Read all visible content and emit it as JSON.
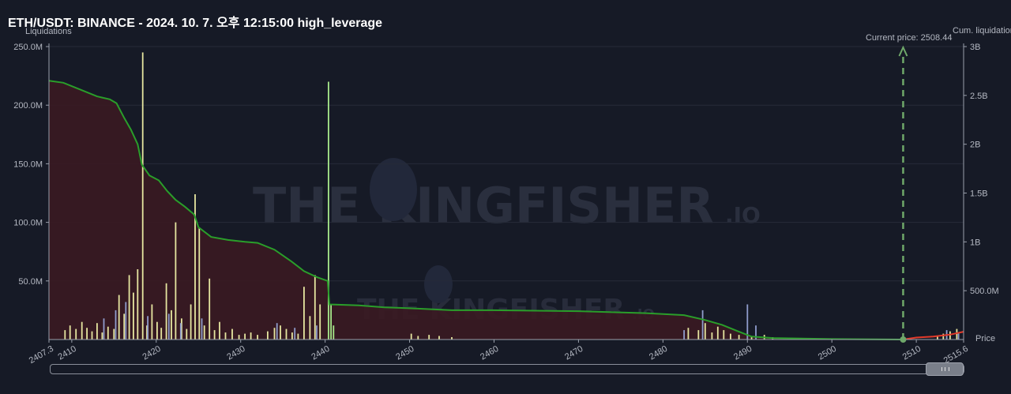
{
  "title": "ETH/USDT: BINANCE - 2024. 10. 7. 오후 12:15:00 high_leverage",
  "chart_data": {
    "type": "bar",
    "left_axis_label": "Liquidations",
    "right_axis_label": "Cum. liquidations",
    "right_axis_sublabel": "Price",
    "left_ticks": [
      "50.0M",
      "100.0M",
      "150.0M",
      "200.0M",
      "250.0M"
    ],
    "left_tick_values": [
      50,
      100,
      150,
      200,
      250
    ],
    "left_ylim": [
      0,
      250
    ],
    "right_ticks": [
      "500.0M",
      "1B",
      "1.5B",
      "2B",
      "2.5B",
      "3B"
    ],
    "right_tick_values": [
      0.5,
      1,
      1.5,
      2,
      2.5,
      3
    ],
    "right_ylim": [
      0,
      3
    ],
    "x_ticks": [
      "2407.3",
      "2410",
      "2420",
      "2430",
      "2440",
      "2450",
      "2460",
      "2470",
      "2480",
      "2490",
      "2500",
      "2510",
      "2515.6"
    ],
    "x_tick_values": [
      2407.3,
      2410,
      2420,
      2430,
      2440,
      2450,
      2460,
      2470,
      2480,
      2490,
      2500,
      2510,
      2515.6
    ],
    "xlim": [
      2407.3,
      2515.6
    ],
    "current_price": 2508.44,
    "current_price_label": "Current price: 2508.44",
    "watermark_large": "THE KINGFISHER",
    "watermark_suffix": ".IO",
    "watermark_small": "THE KINGFISHER",
    "watermark_small_suffix": ".IO",
    "bars_yellow": [
      [
        2409.2,
        8
      ],
      [
        2409.8,
        12
      ],
      [
        2410.5,
        9
      ],
      [
        2411.2,
        15
      ],
      [
        2411.8,
        10
      ],
      [
        2412.4,
        7
      ],
      [
        2413.0,
        14
      ],
      [
        2413.6,
        6
      ],
      [
        2414.3,
        11
      ],
      [
        2415.0,
        9
      ],
      [
        2415.6,
        38
      ],
      [
        2416.2,
        22
      ],
      [
        2416.8,
        55
      ],
      [
        2417.3,
        40
      ],
      [
        2417.8,
        60
      ],
      [
        2418.4,
        245
      ],
      [
        2418.9,
        12
      ],
      [
        2419.5,
        30
      ],
      [
        2420.1,
        15
      ],
      [
        2420.6,
        10
      ],
      [
        2421.2,
        48
      ],
      [
        2421.8,
        25
      ],
      [
        2422.3,
        100
      ],
      [
        2423.0,
        18
      ],
      [
        2423.6,
        9
      ],
      [
        2424.1,
        30
      ],
      [
        2424.6,
        124
      ],
      [
        2425.1,
        95
      ],
      [
        2425.7,
        12
      ],
      [
        2426.3,
        52
      ],
      [
        2426.9,
        8
      ],
      [
        2427.5,
        15
      ],
      [
        2428.2,
        6
      ],
      [
        2429.0,
        9
      ],
      [
        2429.8,
        4
      ],
      [
        2430.5,
        5
      ],
      [
        2431.2,
        6
      ],
      [
        2432.0,
        4
      ],
      [
        2433.2,
        7
      ],
      [
        2434.0,
        10
      ],
      [
        2434.7,
        12
      ],
      [
        2435.4,
        9
      ],
      [
        2436.1,
        6
      ],
      [
        2436.8,
        5
      ],
      [
        2437.5,
        45
      ],
      [
        2438.2,
        20
      ],
      [
        2438.8,
        55
      ],
      [
        2439.4,
        30
      ],
      [
        2450.2,
        5
      ],
      [
        2451.0,
        3
      ],
      [
        2452.3,
        4
      ],
      [
        2453.5,
        3
      ],
      [
        2455.0,
        2
      ],
      [
        2483.0,
        10
      ],
      [
        2484.2,
        8
      ],
      [
        2485.0,
        14
      ],
      [
        2485.8,
        6
      ],
      [
        2486.5,
        11
      ],
      [
        2487.2,
        8
      ],
      [
        2488.0,
        5
      ],
      [
        2489.0,
        4
      ],
      [
        2490.5,
        3
      ],
      [
        2492.0,
        4
      ],
      [
        2493.0,
        2
      ],
      [
        2512.5,
        3
      ],
      [
        2513.2,
        5
      ],
      [
        2514.0,
        7
      ],
      [
        2514.8,
        9
      ]
    ],
    "bars_blue": [
      [
        2413.8,
        18
      ],
      [
        2415.2,
        25
      ],
      [
        2416.4,
        32
      ],
      [
        2419.0,
        20
      ],
      [
        2421.5,
        22
      ],
      [
        2422.9,
        14
      ],
      [
        2425.4,
        18
      ],
      [
        2434.3,
        14
      ],
      [
        2436.4,
        10
      ],
      [
        2439.0,
        12
      ],
      [
        2482.5,
        8
      ],
      [
        2484.7,
        25
      ],
      [
        2490.0,
        30
      ],
      [
        2491.0,
        12
      ],
      [
        2513.6,
        8
      ],
      [
        2515.0,
        6
      ]
    ],
    "bars_green": [
      [
        2440.4,
        220
      ],
      [
        2440.7,
        30
      ],
      [
        2441.0,
        12
      ]
    ],
    "cum_curve_left": [
      [
        2407.3,
        2.65
      ],
      [
        2409.0,
        2.63
      ],
      [
        2411.0,
        2.56
      ],
      [
        2413.0,
        2.49
      ],
      [
        2414.5,
        2.46
      ],
      [
        2415.3,
        2.42
      ],
      [
        2416.2,
        2.27
      ],
      [
        2417.0,
        2.15
      ],
      [
        2417.8,
        2.0
      ],
      [
        2418.3,
        1.79
      ],
      [
        2419.2,
        1.68
      ],
      [
        2420.3,
        1.63
      ],
      [
        2421.3,
        1.52
      ],
      [
        2422.3,
        1.43
      ],
      [
        2423.4,
        1.36
      ],
      [
        2424.5,
        1.28
      ],
      [
        2425.0,
        1.15
      ],
      [
        2426.5,
        1.05
      ],
      [
        2428.5,
        1.02
      ],
      [
        2430.5,
        1.0
      ],
      [
        2432.0,
        0.99
      ],
      [
        2434.0,
        0.92
      ],
      [
        2436.0,
        0.8
      ],
      [
        2437.5,
        0.7
      ],
      [
        2439.0,
        0.64
      ],
      [
        2440.3,
        0.6
      ],
      [
        2440.5,
        0.36
      ],
      [
        2444.0,
        0.35
      ],
      [
        2447.0,
        0.33
      ],
      [
        2450.0,
        0.32
      ],
      [
        2455.0,
        0.3
      ],
      [
        2460.0,
        0.3
      ],
      [
        2470.0,
        0.29
      ],
      [
        2478.0,
        0.27
      ],
      [
        2482.5,
        0.25
      ],
      [
        2485.0,
        0.2
      ],
      [
        2487.0,
        0.15
      ],
      [
        2489.0,
        0.08
      ],
      [
        2490.5,
        0.03
      ],
      [
        2493.0,
        0.015
      ],
      [
        2500.0,
        0.005
      ],
      [
        2508.44,
        0.0
      ]
    ],
    "cum_curve_right": [
      [
        2508.44,
        0.0
      ],
      [
        2510.0,
        0.02
      ],
      [
        2512.0,
        0.03
      ],
      [
        2514.0,
        0.05
      ],
      [
        2515.6,
        0.08
      ]
    ],
    "colors": {
      "background": "#161a26",
      "bar_yellow": "#e6e6a0",
      "bar_blue": "#8f9ccc",
      "bar_green": "#a6e88a",
      "cum_line_left": "#2a9e2a",
      "cum_fill_left": "#3a1a22",
      "cum_line_right": "#e33a2a",
      "price_line": "#6fa86a",
      "grid": "#262b38"
    }
  }
}
